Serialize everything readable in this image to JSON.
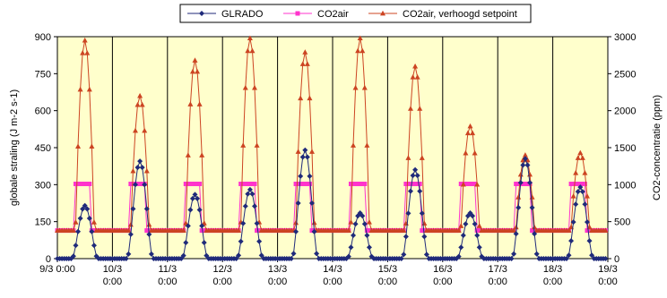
{
  "chart_data": {
    "type": "line",
    "y_left_label": "globale straling (J m-2 s-1)",
    "y_right_label": "CO2-concentratie (ppm)",
    "y_left_range": [
      0,
      900
    ],
    "y_left_ticks": [
      "0",
      "150",
      "300",
      "450",
      "600",
      "750",
      "900"
    ],
    "y_right_range": [
      0,
      3000
    ],
    "y_right_ticks": [
      "0",
      "500",
      "1000",
      "1500",
      "2000",
      "2500",
      "3000"
    ],
    "x_range_days": [
      0,
      10
    ],
    "x_tick_labels": [
      [
        "9/3 0:00"
      ],
      [
        "10/3",
        "0:00"
      ],
      [
        "11/3",
        "0:00"
      ],
      [
        "12/3",
        "0:00"
      ],
      [
        "13/3",
        "0:00"
      ],
      [
        "14/3",
        "0:00"
      ],
      [
        "15/3",
        "0:00"
      ],
      [
        "16/3",
        "0:00"
      ],
      [
        "17/3",
        "0:00"
      ],
      [
        "18/3",
        "0:00"
      ],
      [
        "19/3",
        "0:00"
      ]
    ],
    "plot_background": "#ffffcc",
    "grid": "vertical",
    "legend_position": "top",
    "series": [
      {
        "name": "GLRADO",
        "axis": "left",
        "color": "#1f2a7a",
        "marker": "diamond",
        "peaks": [
          {
            "day": 0,
            "amplitude": 215
          },
          {
            "day": 1,
            "amplitude": 395
          },
          {
            "day": 2,
            "amplitude": 260
          },
          {
            "day": 3,
            "amplitude": 280
          },
          {
            "day": 4,
            "amplitude": 440
          },
          {
            "day": 5,
            "amplitude": 185
          },
          {
            "day": 6,
            "amplitude": 360
          },
          {
            "day": 7,
            "amplitude": 185
          },
          {
            "day": 8,
            "amplitude": 405
          },
          {
            "day": 9,
            "amplitude": 290
          }
        ]
      },
      {
        "name": "CO2air",
        "axis": "right",
        "color": "#ff33cc",
        "marker": "square",
        "night_value": 380,
        "day_value": 1010
      },
      {
        "name": "CO2air, verhoogd setpoint",
        "axis": "right",
        "color": "#cc4422",
        "marker": "triangle",
        "night_value": 380,
        "peaks": [
          {
            "day": 0,
            "amplitude": 2950
          },
          {
            "day": 1,
            "amplitude": 2200
          },
          {
            "day": 2,
            "amplitude": 2680
          },
          {
            "day": 3,
            "amplitude": 2980
          },
          {
            "day": 4,
            "amplitude": 2790
          },
          {
            "day": 5,
            "amplitude": 2980
          },
          {
            "day": 6,
            "amplitude": 2600
          },
          {
            "day": 7,
            "amplitude": 1790
          },
          {
            "day": 8,
            "amplitude": 1400
          },
          {
            "day": 9,
            "amplitude": 1430
          }
        ]
      }
    ]
  }
}
